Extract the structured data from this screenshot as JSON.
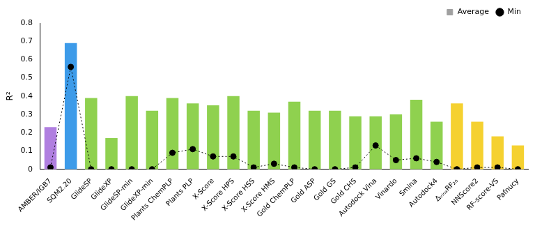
{
  "chart_data": {
    "type": "bar",
    "categories": [
      "AMBER/IGB7",
      "SQM2.20",
      "GlideSP",
      "GlideXP",
      "GlideSP-min",
      "GlideXP-min",
      "Plants ChemPLP",
      "Plants PLP",
      "X-Score",
      "X-Score HPS",
      "X-Score HSS",
      "X-Score HMS",
      "Gold ChemPLP",
      "Gold ASP",
      "Gold GS",
      "Gold CHS",
      "Autodock Vina",
      "Vinardo",
      "Smina",
      "Autodock4",
      "ΔᵥᵢₙₐRF₂₀",
      "NNScore2",
      "RF-score-VS",
      "Pafnucy"
    ],
    "y_label": "R²",
    "ylim": [
      0,
      0.8
    ],
    "yticks": [
      0,
      0.1,
      0.2,
      0.3,
      0.4,
      0.5,
      0.6,
      0.7,
      0.8
    ],
    "grid": false,
    "legend": "upper right",
    "series": [
      {
        "name": "Average",
        "type": "bar",
        "colors": [
          "#b07fe0",
          "#3d9be9",
          "#8fd14f",
          "#8fd14f",
          "#8fd14f",
          "#8fd14f",
          "#8fd14f",
          "#8fd14f",
          "#8fd14f",
          "#8fd14f",
          "#8fd14f",
          "#8fd14f",
          "#8fd14f",
          "#8fd14f",
          "#8fd14f",
          "#8fd14f",
          "#8fd14f",
          "#8fd14f",
          "#8fd14f",
          "#8fd14f",
          "#f5d130",
          "#f5d130",
          "#f5d130",
          "#f5d130"
        ],
        "values": [
          0.23,
          0.69,
          0.39,
          0.17,
          0.4,
          0.32,
          0.39,
          0.36,
          0.35,
          0.4,
          0.32,
          0.31,
          0.37,
          0.32,
          0.32,
          0.29,
          0.29,
          0.3,
          0.38,
          0.26,
          0.36,
          0.26,
          0.18,
          0.13
        ]
      },
      {
        "name": "Min",
        "type": "line",
        "color": "#000000",
        "marker": "circle",
        "line_style": "dotted",
        "values": [
          0.01,
          0.56,
          0.0,
          0.0,
          0.0,
          0.0,
          0.09,
          0.11,
          0.07,
          0.07,
          0.01,
          0.03,
          0.01,
          0.0,
          0.0,
          0.01,
          0.13,
          0.05,
          0.06,
          0.04,
          0.0,
          0.01,
          0.01,
          0.0
        ]
      }
    ]
  }
}
